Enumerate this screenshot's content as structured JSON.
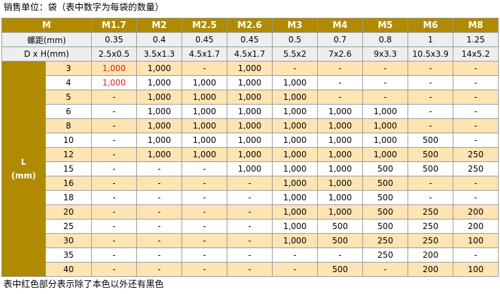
{
  "caption_top": "销售单位：袋（表中数字为每袋的数量）",
  "caption_bottom": "表中红色部分表示除了本色以外还有黑色",
  "table": {
    "corner": "M",
    "sizes": [
      "M1.7",
      "M2",
      "M2.5",
      "M2.6",
      "M3",
      "M4",
      "M5",
      "M6",
      "M8"
    ],
    "pitch_label": "螺距(mm)",
    "pitch": [
      "0.35",
      "0.4",
      "0.45",
      "0.45",
      "0.5",
      "0.7",
      "0.8",
      "1",
      "1.25"
    ],
    "dh_label": "D x H(mm)",
    "dh": [
      "2.5x0.5",
      "3.5x1.3",
      "4.5x1.7",
      "4.5x1.7",
      "5.5x2",
      "7x2.6",
      "9x3.3",
      "10.5x3.9",
      "14x5.2"
    ],
    "length_label": "L",
    "length_unit": "(mm)",
    "highlight_color": "#e02020",
    "rows": [
      {
        "l": "3",
        "cells": [
          "1,000",
          "1,000",
          "-",
          "1,000",
          "-",
          "-",
          "-",
          "-",
          "-"
        ],
        "red": [
          0
        ]
      },
      {
        "l": "4",
        "cells": [
          "1,000",
          "1,000",
          "1,000",
          "1,000",
          "1,000",
          "-",
          "-",
          "-",
          "-"
        ],
        "red": [
          0
        ]
      },
      {
        "l": "5",
        "cells": [
          "-",
          "1,000",
          "1,000",
          "1,000",
          "1,000",
          "-",
          "-",
          "-",
          "-"
        ],
        "red": []
      },
      {
        "l": "6",
        "cells": [
          "-",
          "1,000",
          "1,000",
          "1,000",
          "1,000",
          "1,000",
          "1,000",
          "-",
          "-"
        ],
        "red": []
      },
      {
        "l": "8",
        "cells": [
          "-",
          "1,000",
          "1,000",
          "1,000",
          "1,000",
          "1,000",
          "1,000",
          "-",
          "-"
        ],
        "red": []
      },
      {
        "l": "10",
        "cells": [
          "-",
          "1,000",
          "1,000",
          "1,000",
          "1,000",
          "1,000",
          "1,000",
          "500",
          "-"
        ],
        "red": []
      },
      {
        "l": "12",
        "cells": [
          "-",
          "1,000",
          "1,000",
          "1,000",
          "1,000",
          "1,000",
          "1,000",
          "500",
          "250"
        ],
        "red": []
      },
      {
        "l": "15",
        "cells": [
          "-",
          "-",
          "-",
          "1,000",
          "1,000",
          "1,000",
          "500",
          "500",
          "250"
        ],
        "red": []
      },
      {
        "l": "16",
        "cells": [
          "-",
          "-",
          "-",
          "-",
          "1,000",
          "1,000",
          "500",
          "-",
          "-"
        ],
        "red": []
      },
      {
        "l": "18",
        "cells": [
          "-",
          "-",
          "-",
          "-",
          "1,000",
          "1,000",
          "500",
          "-",
          "-"
        ],
        "red": []
      },
      {
        "l": "20",
        "cells": [
          "-",
          "-",
          "-",
          "-",
          "1,000",
          "1,000",
          "500",
          "250",
          "200"
        ],
        "red": []
      },
      {
        "l": "25",
        "cells": [
          "-",
          "-",
          "-",
          "-",
          "1,000",
          "500",
          "500",
          "250",
          "200"
        ],
        "red": []
      },
      {
        "l": "30",
        "cells": [
          "-",
          "-",
          "-",
          "-",
          "1,000",
          "500",
          "250",
          "250",
          "100"
        ],
        "red": []
      },
      {
        "l": "35",
        "cells": [
          "-",
          "-",
          "-",
          "-",
          "-",
          "-",
          "250",
          "200",
          "-"
        ],
        "red": []
      },
      {
        "l": "40",
        "cells": [
          "-",
          "-",
          "-",
          "-",
          "-",
          "500",
          "-",
          "200",
          "100"
        ],
        "red": []
      }
    ]
  }
}
